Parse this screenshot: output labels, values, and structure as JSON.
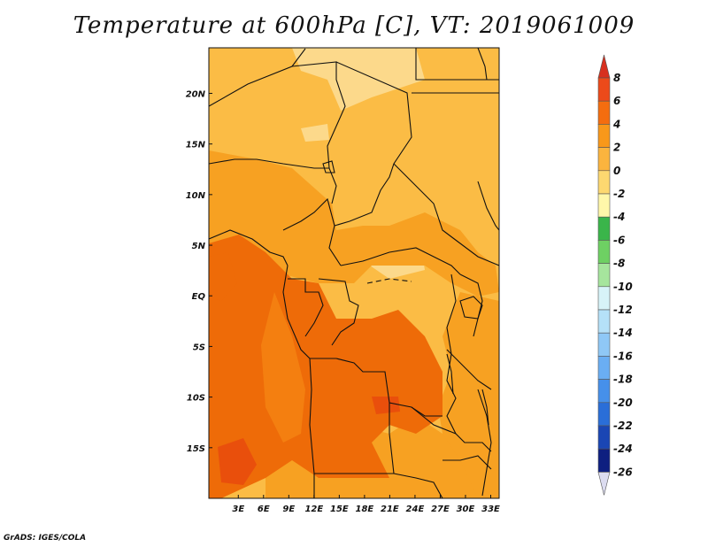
{
  "title": "Temperature at 600hPa [C], VT: 2019061009",
  "credit": "GrADS: IGES/COLA",
  "map": {
    "lon_ticks": [
      "3E",
      "6E",
      "9E",
      "12E",
      "15E",
      "18E",
      "21E",
      "24E",
      "27E",
      "30E",
      "33E"
    ],
    "lat_ticks": [
      "20N",
      "15N",
      "10N",
      "5N",
      "EQ",
      "5S",
      "10S",
      "15S"
    ]
  },
  "colorbar": {
    "levels": [
      "8",
      "6",
      "4",
      "2",
      "0",
      "-2",
      "-4",
      "-6",
      "-8",
      "-10",
      "-12",
      "-14",
      "-16",
      "-18",
      "-20",
      "-22",
      "-24",
      "-26"
    ],
    "colors": [
      "#d7301f",
      "#ec4a1a",
      "#f46d0f",
      "#f8981a",
      "#fbb43e",
      "#fdd870",
      "#fff7aa",
      "#3ab54a",
      "#6ed063",
      "#a6e59d",
      "#d7f3f8",
      "#b5e1f8",
      "#8fc8f6",
      "#6aaef3",
      "#4690ea",
      "#2a6ed8",
      "#1a46b4",
      "#0e1f80",
      "#dcdcf0"
    ]
  },
  "palette": {
    "light": "#fcd98b",
    "mid": "#fbbc45",
    "warm": "#f7a122",
    "hot": "#f47f10",
    "hotter": "#ee6b08",
    "hottest": "#e94f0c",
    "border": "#111111"
  }
}
